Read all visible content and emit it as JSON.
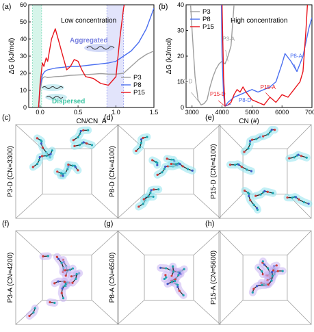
{
  "chart_data": [
    {
      "panel": "(a)",
      "type": "line",
      "annotation": "Low concentration",
      "region_labels": [
        "Aggregated",
        "Dispersed"
      ],
      "xlabel": "CN/CN_A",
      "ylabel": "ΔG (kJ/mol)",
      "xlim": [
        -0.15,
        1.5
      ],
      "ylim": [
        0,
        60
      ],
      "xticks": [
        "0.0",
        "0.5",
        "1.0",
        "1.5"
      ],
      "yticks": [
        "0",
        "10",
        "20",
        "30",
        "40",
        "50",
        "60"
      ],
      "legend_position": "bottom-right",
      "colors": {
        "P3": "#9e9e9e",
        "P8": "#4a6ef0",
        "P15": "#e8141c"
      },
      "shaded_regions": [
        {
          "x": [
            -0.1,
            0.02
          ],
          "color": "#d6f5ea"
        },
        {
          "x": [
            0.88,
            1.1
          ],
          "color": "#e2e4fb"
        }
      ],
      "series": [
        {
          "name": "P3",
          "x": [
            -0.02,
            0.0,
            0.03,
            0.06,
            0.1,
            0.2,
            0.3,
            0.4,
            0.5,
            0.6,
            0.7,
            0.8,
            0.9,
            1.0,
            1.1,
            1.2,
            1.3,
            1.4,
            1.5
          ],
          "y": [
            0,
            10,
            17,
            18,
            17.5,
            18,
            18.3,
            18.8,
            19,
            19.2,
            19.5,
            19.8,
            19.5,
            19.5,
            20,
            24,
            28,
            31,
            33
          ]
        },
        {
          "name": "P8",
          "x": [
            -0.02,
            0.0,
            0.03,
            0.06,
            0.1,
            0.2,
            0.3,
            0.4,
            0.5,
            0.6,
            0.7,
            0.8,
            0.9,
            1.0,
            1.1,
            1.2,
            1.3,
            1.4,
            1.5
          ],
          "y": [
            0,
            12,
            19,
            21,
            22,
            23,
            23.5,
            24,
            24,
            24.5,
            25,
            25.5,
            26,
            27,
            30,
            33,
            38,
            46,
            58
          ]
        },
        {
          "name": "P15",
          "x": [
            -0.02,
            0.0,
            0.03,
            0.05,
            0.08,
            0.1,
            0.15,
            0.2,
            0.25,
            0.3,
            0.35,
            0.4,
            0.45,
            0.5,
            0.55,
            0.6,
            0.7,
            0.8,
            0.9,
            1.0,
            1.05,
            1.1,
            1.12
          ],
          "y": [
            0,
            14,
            26,
            24,
            29,
            27,
            40,
            46,
            38,
            30,
            22,
            24,
            28,
            27,
            22,
            18,
            17,
            14,
            13,
            18,
            40,
            58,
            62
          ]
        }
      ]
    },
    {
      "panel": "(b)",
      "type": "line",
      "annotation": "High concentration",
      "xlabel": "CN (#)",
      "ylabel": "ΔG (kJ/mol)",
      "xlim": [
        2800,
        7000
      ],
      "ylim": [
        0,
        40
      ],
      "xticks": [
        "3000",
        "4000",
        "5000",
        "6000",
        "7000"
      ],
      "yticks": [
        "0",
        "10",
        "20",
        "30",
        "40"
      ],
      "legend_position": "top-left",
      "colors": {
        "P3": "#9e9e9e",
        "P8": "#4a6ef0",
        "P15": "#e8141c"
      },
      "point_labels": [
        {
          "text": "P3-D",
          "series": "P3",
          "x": 3280,
          "y": 1.5
        },
        {
          "text": "P3-A",
          "series": "P3",
          "x": 4200,
          "y": 18
        },
        {
          "text": "P8-D",
          "series": "P8",
          "x": 4100,
          "y": 0.5
        },
        {
          "text": "P8-A",
          "series": "P8",
          "x": 6500,
          "y": 14
        },
        {
          "text": "P15-D",
          "series": "P15",
          "x": 4100,
          "y": 0.5
        },
        {
          "text": "P15-A",
          "series": "P15",
          "x": 5600,
          "y": 4
        }
      ],
      "series": [
        {
          "name": "P3",
          "x": [
            2950,
            3000,
            3100,
            3200,
            3300,
            3400,
            3500,
            3600,
            3700,
            3800,
            3900,
            4000,
            4100,
            4200,
            4300,
            4400
          ],
          "y": [
            40,
            30,
            12,
            3,
            1,
            1.5,
            3,
            8,
            12,
            15,
            17,
            18,
            17,
            20,
            24,
            40
          ]
        },
        {
          "name": "P8",
          "x": [
            3980,
            4000,
            4050,
            4100,
            4200,
            4400,
            4600,
            4800,
            5000,
            5200,
            5400,
            5600,
            5800,
            6000,
            6100,
            6300,
            6500,
            6700,
            6900,
            7000
          ],
          "y": [
            40,
            20,
            5,
            0.5,
            2,
            4,
            5,
            6,
            7,
            6,
            7,
            8,
            10,
            17,
            21,
            18,
            14,
            20,
            31,
            35
          ]
        },
        {
          "name": "P15",
          "x": [
            4000,
            4050,
            4100,
            4200,
            4300,
            4400,
            4500,
            4600,
            4700,
            4800,
            5000,
            5200,
            5400,
            5600,
            5800,
            6000,
            6200,
            6400,
            6600,
            6700,
            6800,
            6850
          ],
          "y": [
            40,
            12,
            0.5,
            1,
            2,
            5,
            7,
            6,
            8,
            6,
            3,
            2,
            1,
            4,
            2,
            5,
            4,
            7,
            10,
            14,
            30,
            40
          ]
        }
      ]
    }
  ],
  "snapshots": [
    {
      "panel": "(c)",
      "label": "P3-D (CN=3300)",
      "state": "dispersed"
    },
    {
      "panel": "(d)",
      "label": "P8-D (CN=4100)",
      "state": "dispersed"
    },
    {
      "panel": "(e)",
      "label": "P15-D (CN=4100)",
      "state": "dispersed"
    },
    {
      "panel": "(f)",
      "label": "P3-A (CN=4200)",
      "state": "aggregated"
    },
    {
      "panel": "(g)",
      "label": "P8-A (CN=6500)",
      "state": "aggregated"
    },
    {
      "panel": "(h)",
      "label": "P15-A (CN=5600)",
      "state": "aggregated"
    }
  ]
}
